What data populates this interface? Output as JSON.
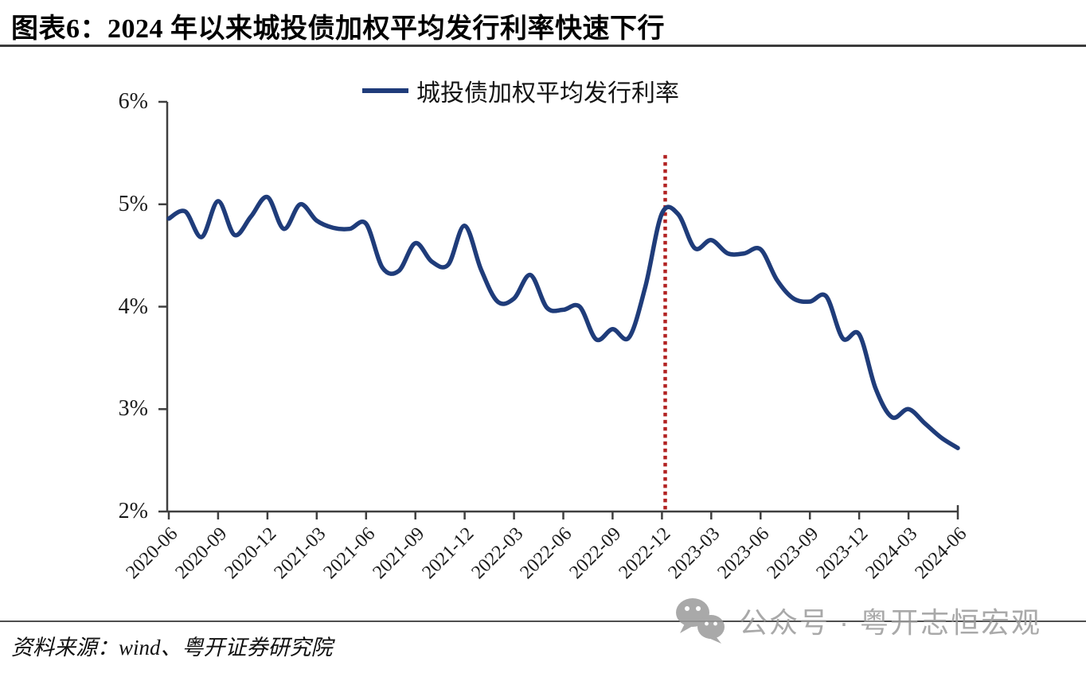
{
  "figure": {
    "title": "图表6：2024 年以来城投债加权平均发行利率快速下行",
    "source": "资料来源：wind、粤开证券研究院",
    "watermark_text": "公众号 · 粤开志恒宏观",
    "watermark_icon": "wechat-icon"
  },
  "chart_data": {
    "type": "line",
    "legend_position": "top-center",
    "grid": false,
    "background": "#ffffff",
    "axis_color": "#3f3f3f",
    "ylim": [
      2,
      6
    ],
    "y_tick_labels": [
      "6%",
      "5%",
      "4%",
      "3%",
      "2%"
    ],
    "y_tick_values": [
      6,
      5,
      4,
      3,
      2
    ],
    "x_tick_labels": [
      "2020-06",
      "2020-09",
      "2020-12",
      "2021-03",
      "2021-06",
      "2021-09",
      "2021-12",
      "2022-03",
      "2022-06",
      "2022-09",
      "2022-12",
      "2023-03",
      "2023-06",
      "2023-09",
      "2023-12",
      "2024-03",
      "2024-06"
    ],
    "x": [
      "2020-06",
      "2020-07",
      "2020-08",
      "2020-09",
      "2020-10",
      "2020-11",
      "2020-12",
      "2021-01",
      "2021-02",
      "2021-03",
      "2021-04",
      "2021-05",
      "2021-06",
      "2021-07",
      "2021-08",
      "2021-09",
      "2021-10",
      "2021-11",
      "2021-12",
      "2022-01",
      "2022-02",
      "2022-03",
      "2022-04",
      "2022-05",
      "2022-06",
      "2022-07",
      "2022-08",
      "2022-09",
      "2022-10",
      "2022-11",
      "2022-12",
      "2023-01",
      "2023-02",
      "2023-03",
      "2023-04",
      "2023-05",
      "2023-06",
      "2023-07",
      "2023-08",
      "2023-09",
      "2023-10",
      "2023-11",
      "2023-12",
      "2024-01",
      "2024-02",
      "2024-03",
      "2024-04",
      "2024-05",
      "2024-06"
    ],
    "series": [
      {
        "name": "城投债加权平均发行利率",
        "color": "#1f3c7a",
        "unit": "%",
        "values": [
          4.86,
          4.93,
          4.68,
          5.03,
          4.7,
          4.88,
          5.07,
          4.76,
          5.0,
          4.84,
          4.77,
          4.76,
          4.81,
          4.38,
          4.35,
          4.62,
          4.44,
          4.41,
          4.79,
          4.36,
          4.05,
          4.08,
          4.31,
          3.99,
          3.97,
          4.0,
          3.68,
          3.78,
          3.7,
          4.2,
          4.91,
          4.9,
          4.57,
          4.65,
          4.52,
          4.52,
          4.56,
          4.26,
          4.08,
          4.05,
          4.1,
          3.69,
          3.73,
          3.2,
          2.92,
          3.0,
          2.86,
          2.72,
          2.62
        ]
      }
    ],
    "annotation_vline": {
      "anchor": "2022-12",
      "offset_months": 0.2,
      "color": "#b22222",
      "style": "dotted",
      "top_value": 5.48
    }
  }
}
